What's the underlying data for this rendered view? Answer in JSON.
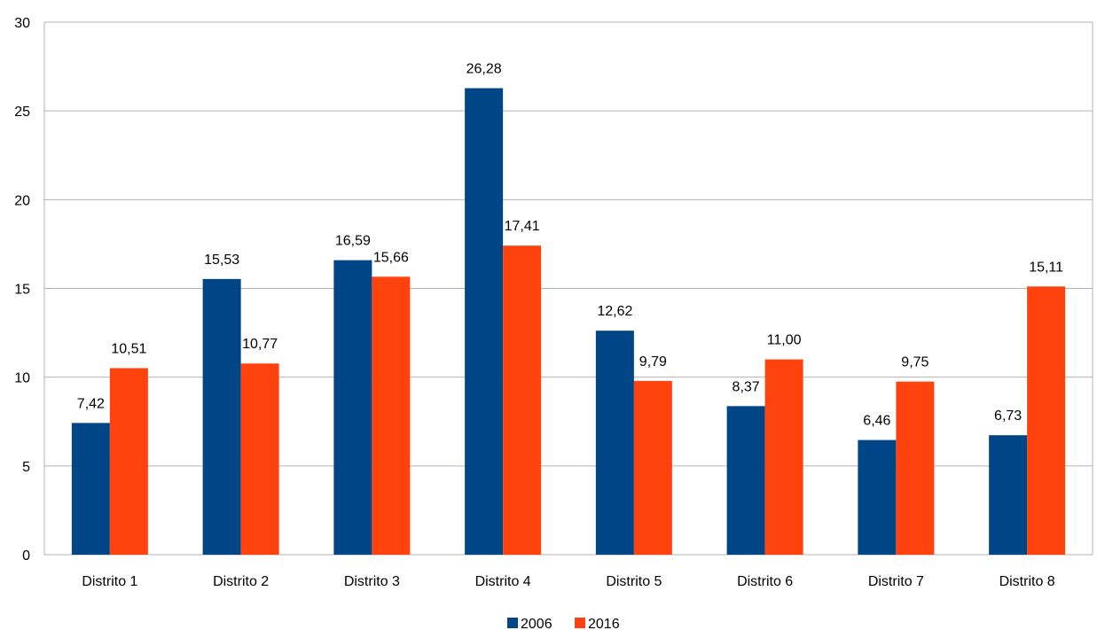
{
  "chart_data": {
    "type": "bar",
    "title": "",
    "xlabel": "",
    "ylabel": "",
    "ylim": [
      0,
      30
    ],
    "yticks": [
      0,
      5,
      10,
      15,
      20,
      25,
      30
    ],
    "grid": true,
    "legend_position": "bottom",
    "categories": [
      "Distrito 1",
      "Distrito 2",
      "Distrito 3",
      "Distrito 4",
      "Distrito 5",
      "Distrito 6",
      "Distrito 7",
      "Distrito 8"
    ],
    "series": [
      {
        "name": "2006",
        "color": "#004586",
        "values": [
          7.42,
          15.53,
          16.59,
          26.28,
          12.62,
          8.37,
          6.46,
          6.73
        ],
        "labels": [
          "7,42",
          "15,53",
          "16,59",
          "26,28",
          "12,62",
          "8,37",
          "6,46",
          "6,73"
        ]
      },
      {
        "name": "2016",
        "color": "#ff420e",
        "values": [
          10.51,
          10.77,
          15.66,
          17.41,
          9.79,
          11.0,
          9.75,
          15.11
        ],
        "labels": [
          "10,51",
          "10,77",
          "15,66",
          "17,41",
          "9,79",
          "11,00",
          "9,75",
          "15,11"
        ]
      }
    ]
  }
}
